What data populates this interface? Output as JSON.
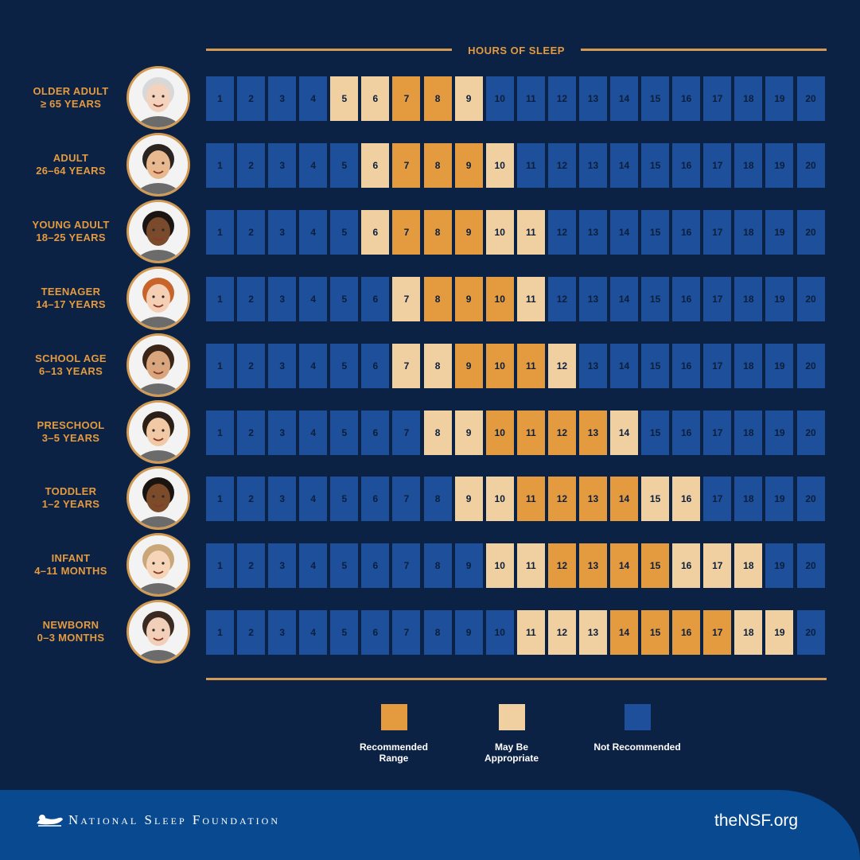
{
  "title": "HOURS OF SLEEP",
  "colors": {
    "recommended": "#e49a3f",
    "may_be_appropriate": "#f0cfa0",
    "not_recommended": "#1e4f9a",
    "background": "#0c2244",
    "footer": "#08498f"
  },
  "chart_data": {
    "type": "table",
    "x": [
      1,
      2,
      3,
      4,
      5,
      6,
      7,
      8,
      9,
      10,
      11,
      12,
      13,
      14,
      15,
      16,
      17,
      18,
      19,
      20
    ],
    "rows": [
      {
        "line1": "OLDER ADULT",
        "line2": "≥ 65 YEARS",
        "avatar": "older-adult-portrait",
        "recommended": [
          7,
          8
        ],
        "may_be_appropriate": [
          5,
          6,
          9
        ]
      },
      {
        "line1": "ADULT",
        "line2": "26–64 YEARS",
        "avatar": "adult-portrait",
        "recommended": [
          7,
          8,
          9
        ],
        "may_be_appropriate": [
          6,
          10
        ]
      },
      {
        "line1": "YOUNG ADULT",
        "line2": "18–25 YEARS",
        "avatar": "young-adult-portrait",
        "recommended": [
          7,
          8,
          9
        ],
        "may_be_appropriate": [
          6,
          10,
          11
        ]
      },
      {
        "line1": "TEENAGER",
        "line2": "14–17 YEARS",
        "avatar": "teenager-portrait",
        "recommended": [
          8,
          9,
          10
        ],
        "may_be_appropriate": [
          7,
          11
        ]
      },
      {
        "line1": "SCHOOL AGE",
        "line2": "6–13 YEARS",
        "avatar": "school-age-portrait",
        "recommended": [
          9,
          10,
          11
        ],
        "may_be_appropriate": [
          7,
          8,
          12
        ]
      },
      {
        "line1": "PRESCHOOL",
        "line2": "3–5 YEARS",
        "avatar": "preschool-portrait",
        "recommended": [
          10,
          11,
          12,
          13
        ],
        "may_be_appropriate": [
          8,
          9,
          14
        ]
      },
      {
        "line1": "TODDLER",
        "line2": "1–2 YEARS",
        "avatar": "toddler-portrait",
        "recommended": [
          11,
          12,
          13,
          14
        ],
        "may_be_appropriate": [
          9,
          10,
          15,
          16
        ]
      },
      {
        "line1": "INFANT",
        "line2": "4–11 MONTHS",
        "avatar": "infant-portrait",
        "recommended": [
          12,
          13,
          14,
          15
        ],
        "may_be_appropriate": [
          10,
          11,
          16,
          17,
          18
        ]
      },
      {
        "line1": "NEWBORN",
        "line2": "0–3 MONTHS",
        "avatar": "newborn-portrait",
        "recommended": [
          14,
          15,
          16,
          17
        ],
        "may_be_appropriate": [
          11,
          12,
          13,
          18,
          19
        ]
      }
    ]
  },
  "legend": [
    {
      "key": "recommended",
      "line1": "Recommended",
      "line2": "Range"
    },
    {
      "key": "may_be_appropriate",
      "line1": "May Be",
      "line2": "Appropriate"
    },
    {
      "key": "not_recommended",
      "line1": "Not Recommended",
      "line2": ""
    }
  ],
  "footer": {
    "brand": "National Sleep Foundation",
    "logo_icon": "sleeping-figure-logo-icon",
    "site": "theNSF.org"
  }
}
